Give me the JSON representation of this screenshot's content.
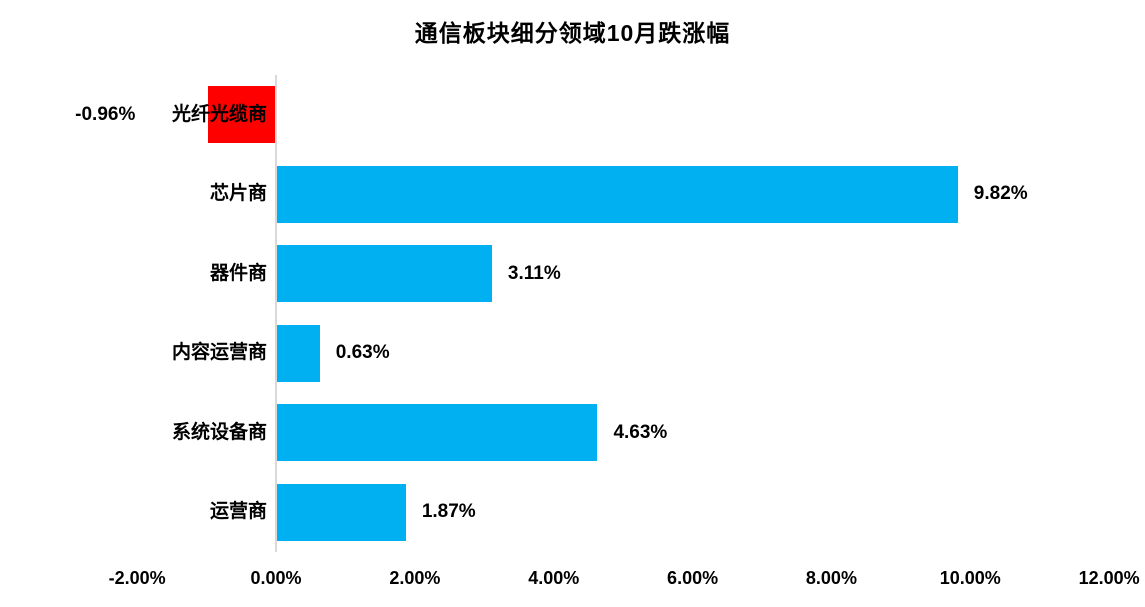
{
  "title": "通信板块细分领域10月跌涨幅",
  "chart_data": {
    "type": "bar",
    "orientation": "horizontal",
    "title": "通信板块细分领域10月跌涨幅",
    "categories": [
      "光纤光缆商",
      "芯片商",
      "器件商",
      "内容运营商",
      "系统设备商",
      "运营商"
    ],
    "values": [
      -0.96,
      9.82,
      3.11,
      0.63,
      4.63,
      1.87
    ],
    "value_labels": [
      "-0.96%",
      "9.82%",
      "3.11%",
      "0.63%",
      "4.63%",
      "1.87%"
    ],
    "xlabel": "",
    "ylabel": "",
    "xlim": [
      -2,
      12
    ],
    "x_ticks": [
      -2,
      0,
      2,
      4,
      6,
      8,
      10,
      12
    ],
    "x_tick_labels": [
      "-2.00%",
      "0.00%",
      "2.00%",
      "4.00%",
      "6.00%",
      "8.00%",
      "10.00%",
      "12.00%"
    ],
    "grid": false,
    "legend": false,
    "colors": {
      "positive_bar": "#00B0F0",
      "negative_bar": "#FF0000",
      "axis_line": "#D9D9D9",
      "text": "#000000",
      "background": "#FFFFFF"
    }
  }
}
